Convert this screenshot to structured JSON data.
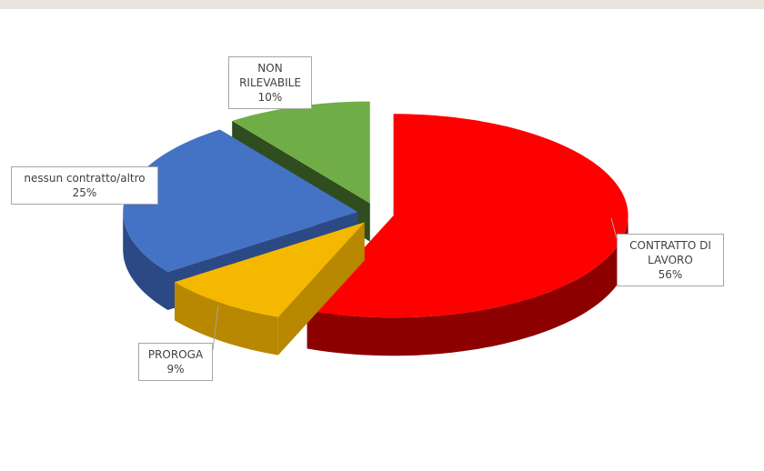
{
  "chart_data": {
    "type": "pie3d",
    "categories": [
      "CONTRATTO DI LAVORO",
      "PROROGA",
      "nessun contratto/altro",
      "NON RILEVABILE"
    ],
    "values": [
      56,
      9,
      25,
      10
    ],
    "value_labels": [
      "56%",
      "9%",
      "25%",
      "10%"
    ],
    "colors": [
      "#ff0000",
      "#f5b800",
      "#4472c4",
      "#70ad47"
    ],
    "side_colors": [
      "#8c0000",
      "#b88800",
      "#2b4a85",
      "#2f4d1f"
    ]
  }
}
